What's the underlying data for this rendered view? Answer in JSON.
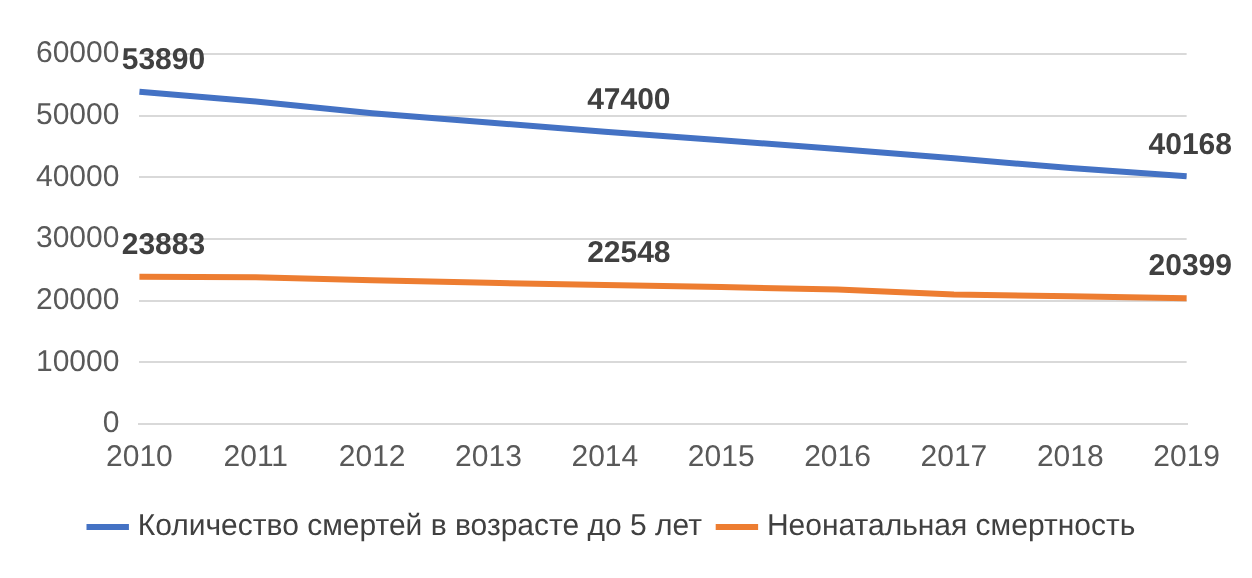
{
  "chart_data": {
    "type": "line",
    "categories": [
      "2010",
      "2011",
      "2012",
      "2013",
      "2014",
      "2015",
      "2016",
      "2017",
      "2018",
      "2019"
    ],
    "series": [
      {
        "name": "Количество смертей в возрасте до 5 лет",
        "color": "#4472c4",
        "values": [
          53890,
          52300,
          50400,
          48900,
          47400,
          46000,
          44600,
          43100,
          41500,
          40168
        ],
        "value_labels": [
          "53890",
          null,
          null,
          null,
          "47400",
          null,
          null,
          null,
          null,
          "40168"
        ]
      },
      {
        "name": "Неонатальная смертность",
        "color": "#ed7d31",
        "values": [
          23883,
          23800,
          23300,
          22900,
          22548,
          22200,
          21800,
          21000,
          20700,
          20399
        ],
        "value_labels": [
          "23883",
          null,
          null,
          null,
          "22548",
          null,
          null,
          null,
          null,
          "20399"
        ]
      }
    ],
    "ylim": [
      0,
      60000
    ],
    "yticks": [
      0,
      10000,
      20000,
      30000,
      40000,
      50000,
      60000
    ],
    "grid": "y",
    "legend": "bottom",
    "marker": "none",
    "line_style": "solid"
  }
}
